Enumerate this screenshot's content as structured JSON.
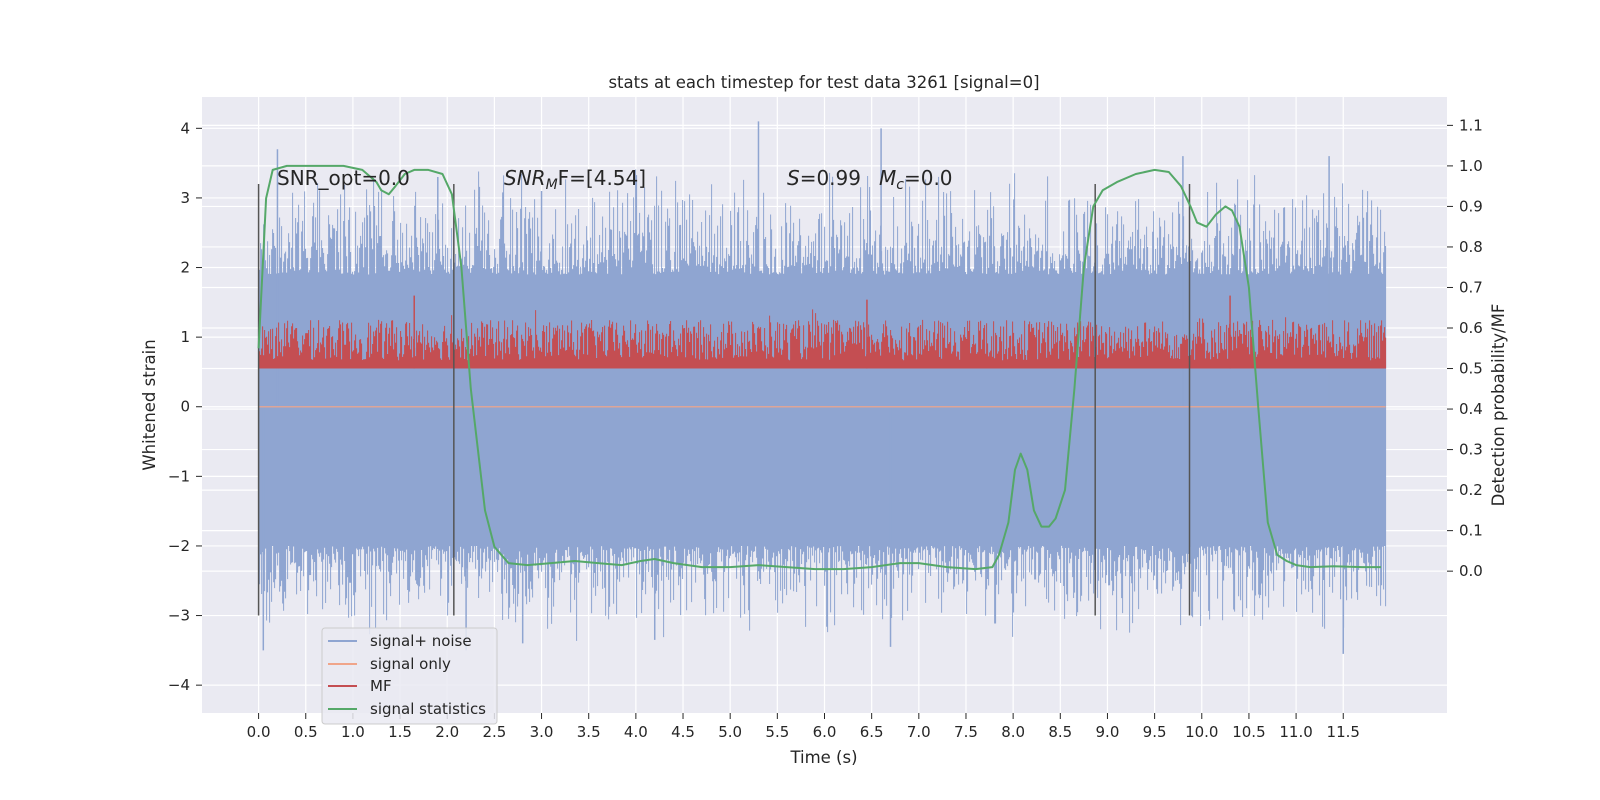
{
  "chart_data": {
    "type": "line",
    "title": "stats at each timestep for test data 3261 [signal=0]",
    "xlabel": "Time (s)",
    "ylabel_left": "Whitened strain",
    "ylabel_right": "Detection probability/MF",
    "xlim": [
      -0.6,
      12.6
    ],
    "ylim_left": [
      -4.4,
      4.45
    ],
    "ylim_right": [
      -0.35,
      1.17
    ],
    "x_ticks": [
      "0.0",
      "0.5",
      "1.0",
      "1.5",
      "2.0",
      "2.5",
      "3.0",
      "3.5",
      "4.0",
      "4.5",
      "5.0",
      "5.5",
      "6.0",
      "6.5",
      "7.0",
      "7.5",
      "8.0",
      "8.5",
      "9.0",
      "9.5",
      "10.0",
      "10.5",
      "11.0",
      "11.5"
    ],
    "y_ticks_left": [
      "4",
      "3",
      "2",
      "1",
      "0",
      "−1",
      "−2",
      "−3",
      "−4"
    ],
    "y_ticks_right": [
      "0.0",
      "0.1",
      "0.2",
      "0.3",
      "0.4",
      "0.5",
      "0.6",
      "0.7",
      "0.8",
      "0.9",
      "1.0",
      "1.1"
    ],
    "grid": true,
    "legend_position": "lower-left",
    "annotations": {
      "snr_opt": "SNR_opt=0.0",
      "snr_mf_prefix": "SNR",
      "snr_mf_sub": "M",
      "snr_mf_suffix": "F=[4.54]",
      "s_label": "S",
      "s_value": "=0.99",
      "mc_label": "M",
      "mc_sub": "c",
      "mc_value": "=0.0"
    },
    "vertical_markers": [
      0.0,
      2.07,
      8.87,
      9.87
    ],
    "colors": {
      "noise": "#8fa5d1",
      "signal_only": "#f0a58a",
      "mf": "#c44e52",
      "stat": "#55a868",
      "background": "#eaeaf2",
      "marker": "#555555"
    },
    "series": [
      {
        "name": "signal+ noise",
        "axis": "left",
        "x_range": [
          0.0,
          11.95
        ],
        "envelope_low": -2.0,
        "envelope_high": 1.9,
        "peak_max": [
          [
            0.2,
            3.7
          ],
          [
            1.9,
            3.3
          ],
          [
            3.0,
            3.1
          ],
          [
            5.3,
            4.1
          ],
          [
            6.6,
            4.0
          ],
          [
            9.8,
            3.6
          ],
          [
            11.35,
            3.6
          ]
        ],
        "peak_min": [
          [
            0.05,
            -3.5
          ],
          [
            2.2,
            -3.5
          ],
          [
            2.8,
            -3.4
          ],
          [
            4.2,
            -3.35
          ],
          [
            6.7,
            -3.45
          ],
          [
            11.5,
            -3.55
          ]
        ]
      },
      {
        "name": "signal only",
        "axis": "left",
        "x": [
          0.0,
          11.95
        ],
        "y": [
          0.0,
          0.0
        ]
      },
      {
        "name": "MF",
        "axis": "right",
        "x_range": [
          0.0,
          11.95
        ],
        "baseline": 0.5,
        "typical_max": 0.62,
        "peak_max": [
          [
            1.65,
            0.68
          ],
          [
            6.45,
            0.67
          ],
          [
            10.3,
            0.68
          ]
        ]
      },
      {
        "name": "signal statistics",
        "axis": "right",
        "x": [
          0.0,
          0.08,
          0.15,
          0.3,
          0.5,
          0.7,
          0.9,
          1.1,
          1.25,
          1.3,
          1.38,
          1.45,
          1.55,
          1.65,
          1.8,
          1.95,
          2.05,
          2.15,
          2.25,
          2.4,
          2.5,
          2.65,
          2.85,
          3.1,
          3.35,
          3.6,
          3.85,
          4.05,
          4.2,
          4.4,
          4.7,
          5.0,
          5.3,
          5.6,
          5.9,
          6.2,
          6.5,
          6.8,
          7.0,
          7.3,
          7.6,
          7.78,
          7.85,
          7.95,
          8.02,
          8.08,
          8.15,
          8.22,
          8.3,
          8.38,
          8.45,
          8.55,
          8.65,
          8.75,
          8.85,
          8.95,
          9.1,
          9.3,
          9.5,
          9.65,
          9.78,
          9.88,
          9.95,
          10.05,
          10.15,
          10.25,
          10.32,
          10.4,
          10.5,
          10.6,
          10.7,
          10.8,
          10.9,
          11.0,
          11.15,
          11.4,
          11.7,
          11.9
        ],
        "y": [
          0.55,
          0.92,
          0.99,
          1.0,
          1.0,
          1.0,
          1.0,
          0.99,
          0.96,
          0.94,
          0.93,
          0.95,
          0.98,
          0.99,
          0.99,
          0.98,
          0.93,
          0.75,
          0.45,
          0.15,
          0.06,
          0.02,
          0.015,
          0.02,
          0.025,
          0.02,
          0.015,
          0.025,
          0.03,
          0.02,
          0.01,
          0.01,
          0.015,
          0.01,
          0.005,
          0.005,
          0.01,
          0.02,
          0.02,
          0.01,
          0.005,
          0.01,
          0.04,
          0.12,
          0.25,
          0.29,
          0.25,
          0.15,
          0.11,
          0.11,
          0.13,
          0.2,
          0.45,
          0.75,
          0.9,
          0.94,
          0.96,
          0.98,
          0.99,
          0.985,
          0.95,
          0.9,
          0.86,
          0.85,
          0.88,
          0.9,
          0.89,
          0.85,
          0.7,
          0.4,
          0.12,
          0.04,
          0.025,
          0.015,
          0.01,
          0.012,
          0.01,
          0.01
        ]
      }
    ]
  }
}
